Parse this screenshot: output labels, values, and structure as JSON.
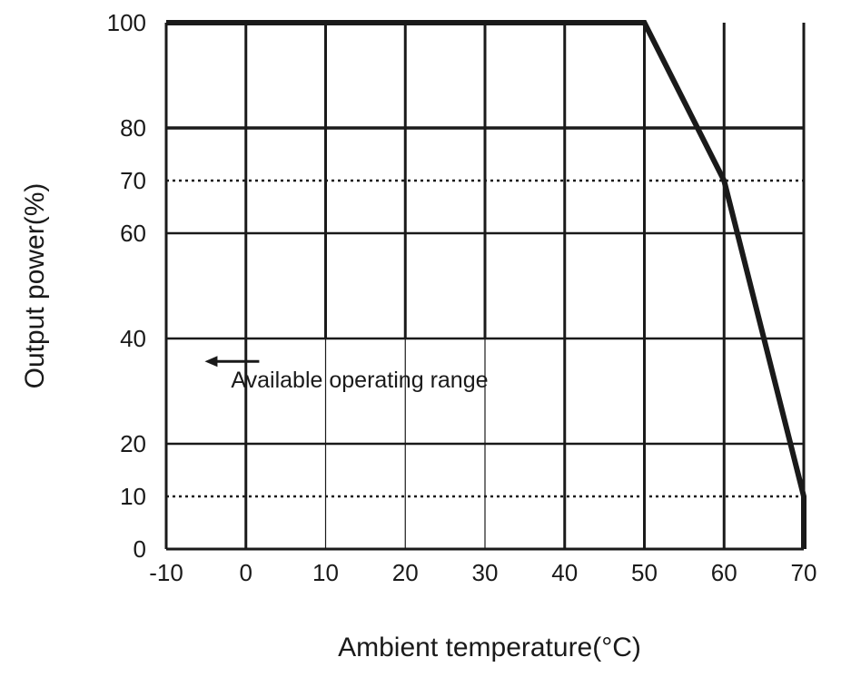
{
  "chart_data": {
    "type": "line",
    "title": "",
    "xlabel": "Ambient temperature(°C)",
    "ylabel": "Output power(%)",
    "xlim": [
      -10,
      70
    ],
    "ylim": [
      0,
      100
    ],
    "x_ticks": [
      -10,
      0,
      10,
      20,
      30,
      40,
      50,
      60,
      70
    ],
    "x_tick_labels": [
      "-10",
      "0",
      "10",
      "20",
      "30",
      "40",
      "50",
      "60",
      "70"
    ],
    "y_ticks": [
      0,
      10,
      20,
      40,
      60,
      70,
      80,
      100
    ],
    "y_tick_labels": [
      "0",
      "10",
      "20",
      "40",
      "60",
      "70",
      "80",
      "100"
    ],
    "grid": true,
    "dotted_reference_lines_y": [
      70,
      10
    ],
    "series": [
      {
        "x": [
          -10,
          50,
          60,
          70,
          70
        ],
        "y": [
          100,
          100,
          70,
          10,
          0
        ]
      }
    ],
    "annotation": {
      "text": "Available operating range",
      "arrow": "left",
      "x": -3,
      "y": 36
    },
    "colors": {
      "line": "#1a1a1a",
      "grid": "#1a1a1a"
    }
  }
}
